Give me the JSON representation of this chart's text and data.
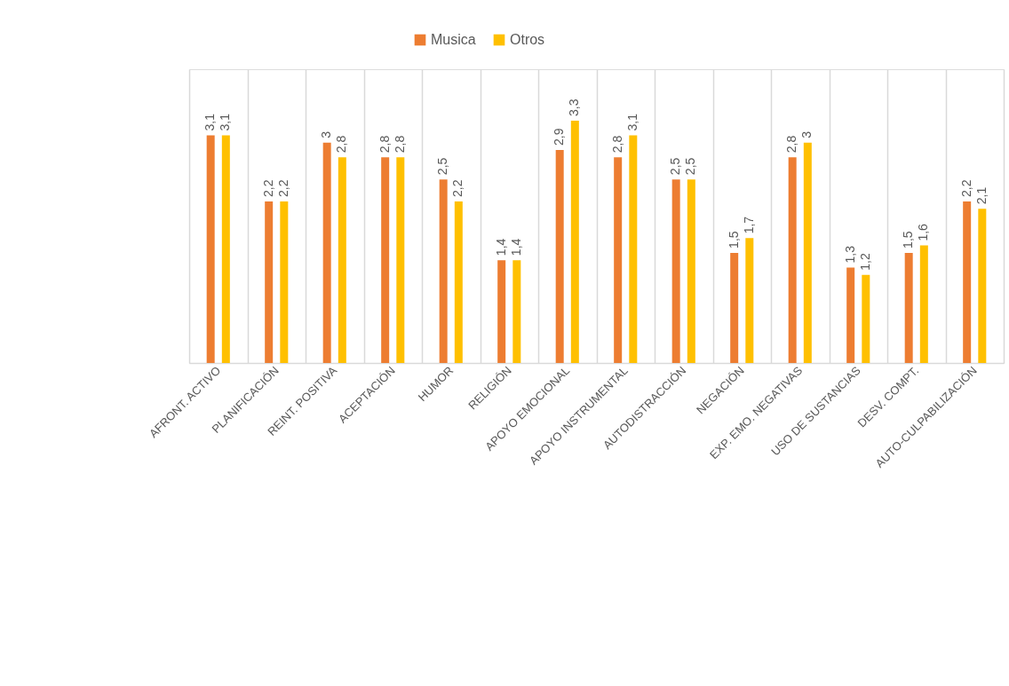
{
  "chart_data": {
    "type": "bar",
    "categories": [
      "AFRONT. ACTIVO",
      "PLANIFICACIÓN",
      "REINT. POSITIVA",
      "ACEPTACIÓN",
      "HUMOR",
      "RELIGIÓN",
      "APOYO EMOCIONAL",
      "APOYO INSTRUMENTAL",
      "AUTODISTRACCIÓN",
      "NEGACIÓN",
      "EXP. EMO. NEGATIVAS",
      "USO DE SUSTANCIAS",
      "DESV. COMPT.",
      "AUTO-CULPABILIZACIÓN"
    ],
    "series": [
      {
        "name": "Musica",
        "color": "#ed7d31",
        "values": [
          3.1,
          2.2,
          3,
          2.8,
          2.5,
          1.4,
          2.9,
          2.8,
          2.5,
          1.5,
          2.8,
          1.3,
          1.5,
          2.2
        ],
        "value_labels": [
          "3,1",
          "2,2",
          "3",
          "2,8",
          "2,5",
          "1,4",
          "2,9",
          "2,8",
          "2,5",
          "1,5",
          "2,8",
          "1,3",
          "1,5",
          "2,2"
        ]
      },
      {
        "name": "Otros",
        "color": "#ffc000",
        "values": [
          3.1,
          2.2,
          2.8,
          2.8,
          2.2,
          1.4,
          3.3,
          3.1,
          2.5,
          1.7,
          3,
          1.2,
          1.6,
          2.1
        ],
        "value_labels": [
          "3,1",
          "2,2",
          "2,8",
          "2,8",
          "2,2",
          "1,4",
          "3,3",
          "3,1",
          "2,5",
          "1,7",
          "3",
          "1,2",
          "1,6",
          "2,1"
        ]
      }
    ],
    "ylim": [
      0,
      4
    ],
    "tick_labels": "x",
    "grid": "x",
    "legend": "top"
  }
}
